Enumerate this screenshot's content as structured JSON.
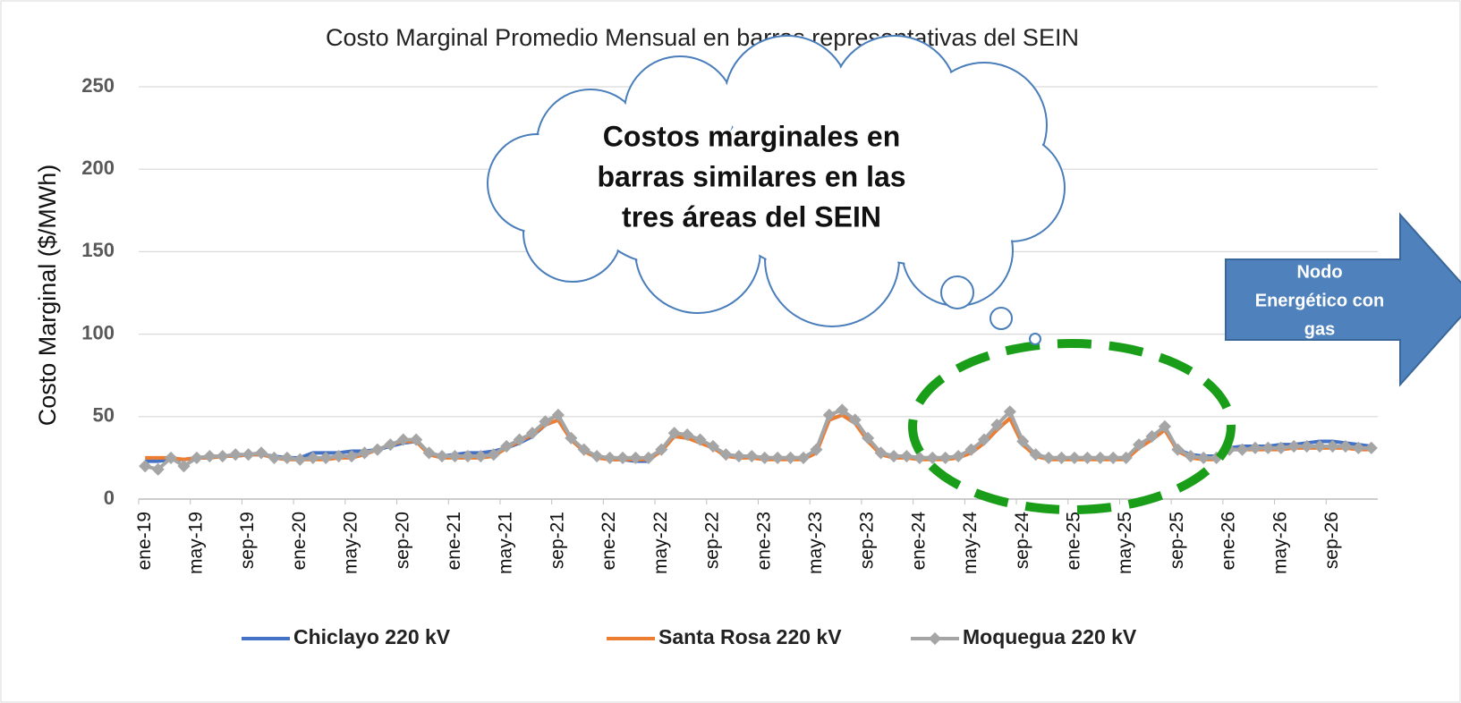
{
  "chart_data": {
    "type": "line",
    "title": "Costo Marginal Promedio Mensual en barras representativas del SEIN",
    "y_label": "Costo Marginal ($/MWh)",
    "annotations": {
      "cloud": [
        "Costos marginales en",
        "barras similares en las",
        "tres áreas del SEIN"
      ],
      "arrow": [
        "Nodo",
        "Energético con",
        "gas"
      ]
    },
    "categories": [
      "ene-19",
      null,
      null,
      null,
      "may-19",
      null,
      null,
      null,
      "sep-19",
      null,
      null,
      null,
      "ene-20",
      null,
      null,
      null,
      "may-20",
      null,
      null,
      null,
      "sep-20",
      null,
      null,
      null,
      "ene-21",
      null,
      null,
      null,
      "may-21",
      null,
      null,
      null,
      "sep-21",
      null,
      null,
      null,
      "ene-22",
      null,
      null,
      null,
      "may-22",
      null,
      null,
      null,
      "sep-22",
      null,
      null,
      null,
      "ene-23",
      null,
      null,
      null,
      "may-23",
      null,
      null,
      null,
      "sep-23",
      null,
      null,
      null,
      "ene-24",
      null,
      null,
      null,
      "may-24",
      null,
      null,
      null,
      "sep-24",
      null,
      null,
      null,
      "ene-25",
      null,
      null,
      null,
      "may-25",
      null,
      null,
      null,
      "sep-25",
      null,
      null,
      null,
      "ene-26",
      null,
      null,
      null,
      "may-26",
      null,
      null,
      null,
      "sep-26",
      null,
      null,
      null
    ],
    "series": [
      {
        "name": "Chiclayo 220 kV",
        "color": "#4472c4",
        "marker": false,
        "values": [
          23,
          23,
          24,
          24,
          25,
          25,
          26,
          26,
          27,
          27,
          26,
          25,
          25,
          28,
          28,
          28,
          29,
          29,
          30,
          32,
          34,
          35,
          28,
          26,
          27,
          28,
          28,
          29,
          31,
          34,
          38,
          45,
          48,
          36,
          29,
          26,
          24,
          24,
          23,
          23,
          30,
          38,
          37,
          35,
          31,
          27,
          26,
          26,
          25,
          25,
          25,
          25,
          29,
          48,
          51,
          46,
          36,
          28,
          26,
          26,
          25,
          25,
          25,
          26,
          28,
          34,
          42,
          49,
          33,
          27,
          25,
          25,
          25,
          25,
          25,
          25,
          25,
          31,
          36,
          42,
          30,
          27,
          26,
          26,
          31,
          32,
          32,
          32,
          33,
          33,
          34,
          35,
          35,
          34,
          33,
          32
        ]
      },
      {
        "name": "Santa Rosa 220 kV",
        "color": "#ed7d31",
        "marker": false,
        "values": [
          25,
          25,
          25,
          24,
          25,
          25,
          26,
          26,
          27,
          27,
          25,
          24,
          24,
          24,
          24,
          25,
          25,
          27,
          30,
          33,
          35,
          35,
          27,
          25,
          25,
          25,
          25,
          26,
          31,
          35,
          39,
          45,
          48,
          36,
          29,
          25,
          24,
          24,
          24,
          24,
          29,
          38,
          37,
          34,
          31,
          26,
          25,
          25,
          24,
          24,
          24,
          24,
          28,
          48,
          51,
          46,
          35,
          27,
          25,
          25,
          24,
          24,
          24,
          25,
          28,
          34,
          42,
          49,
          33,
          26,
          24,
          24,
          24,
          24,
          24,
          24,
          24,
          31,
          36,
          42,
          29,
          25,
          24,
          24,
          30,
          30,
          30,
          30,
          30,
          31,
          31,
          31,
          31,
          31,
          30,
          30
        ]
      },
      {
        "name": "Moquegua 220 kV",
        "color": "#a5a5a5",
        "marker": true,
        "values": [
          20,
          18,
          25,
          20,
          25,
          26,
          26,
          27,
          27,
          28,
          25,
          25,
          24,
          25,
          25,
          26,
          26,
          28,
          30,
          33,
          36,
          36,
          28,
          26,
          26,
          26,
          26,
          27,
          32,
          36,
          40,
          47,
          51,
          37,
          30,
          26,
          25,
          25,
          25,
          25,
          30,
          40,
          39,
          36,
          32,
          27,
          26,
          26,
          25,
          25,
          25,
          25,
          30,
          51,
          54,
          48,
          37,
          28,
          26,
          26,
          25,
          25,
          25,
          26,
          30,
          36,
          45,
          53,
          35,
          27,
          25,
          25,
          25,
          25,
          25,
          25,
          25,
          33,
          38,
          44,
          30,
          26,
          25,
          25,
          30,
          30,
          31,
          31,
          31,
          32,
          32,
          32,
          32,
          32,
          31,
          31
        ]
      }
    ],
    "ylim": [
      0,
      250
    ],
    "yticks": [
      0,
      50,
      100,
      150,
      200,
      250
    ],
    "grid": true,
    "legend": "bottom"
  }
}
